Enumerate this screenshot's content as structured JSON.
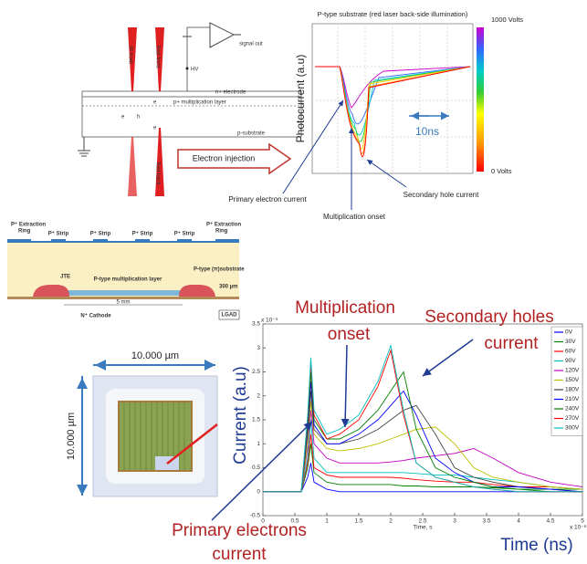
{
  "schematic": {
    "beams": [
      "IR front",
      "Red front",
      "Red back"
    ],
    "layers": [
      "n+ electrode",
      "p+ multiplication layer",
      "p-substrate"
    ],
    "signal": "signal out",
    "hv": "HV",
    "carriers": [
      "e",
      "h",
      "e",
      "e"
    ],
    "arrow": "Electron injection"
  },
  "pulse_plot": {
    "title": "P-type substrate (red laser back-side illumination)",
    "y_label": "Photocurrent (a.u)",
    "colorbar": [
      "1000 Volts",
      "0 Volts"
    ],
    "scale": "10ns",
    "annotations": [
      "Primary electron current",
      "Multiplication onset",
      "Secondary hole current"
    ]
  },
  "lgad": {
    "ring_label": [
      "P⁺ Extraction",
      "Ring"
    ],
    "strip": "P⁺ Strip",
    "multiplication": "P-type multiplication layer",
    "substrate": "P-type (π)substrate",
    "jte": "JTE",
    "thickness": "300 µm",
    "width": "5 mm",
    "cathode": "N⁺ Cathode",
    "tag": "LGAD"
  },
  "chip": {
    "width": "10.000 µm",
    "height": "10.000 µm"
  },
  "chart_data": {
    "type": "line",
    "annotations": [
      "Multiplication",
      "onset",
      "Secondary  holes",
      "current",
      "Primary electrons",
      "current"
    ],
    "y_label": "Current (a.u)",
    "x_label": "Time (ns)",
    "x_axis_label": "Time, s",
    "x_scale": "x 10⁻⁸",
    "y_scale": "x 10⁻⁹",
    "xlim": [
      0,
      5
    ],
    "ylim": [
      -0.5,
      3.5
    ],
    "xticks": [
      0,
      0.5,
      1,
      1.5,
      2,
      2.5,
      3,
      3.5,
      4,
      4.5,
      5
    ],
    "yticks": [
      -0.5,
      0,
      0.5,
      1,
      1.5,
      2,
      2.5,
      3,
      3.5
    ],
    "x": [
      0,
      0.6,
      0.7,
      0.75,
      0.8,
      1.0,
      1.2,
      1.5,
      1.8,
      2.0,
      2.2,
      2.4,
      2.7,
      3.0,
      3.3,
      3.6,
      4.0,
      4.5,
      5.0
    ],
    "series": [
      {
        "name": "0V",
        "color": "#0000ff",
        "values": [
          0,
          0,
          0.3,
          0.6,
          0.2,
          0.05,
          0,
          0,
          0,
          0,
          0,
          0,
          0,
          0,
          0,
          0,
          0,
          0,
          0
        ]
      },
      {
        "name": "30V",
        "color": "#008000",
        "values": [
          0,
          0,
          0.5,
          1.0,
          0.4,
          0.2,
          0.15,
          0.15,
          0.15,
          0.15,
          0.12,
          0.12,
          0.1,
          0.1,
          0.1,
          0.08,
          0.05,
          0.05,
          0.05
        ]
      },
      {
        "name": "60V",
        "color": "#ff0000",
        "values": [
          0,
          0,
          0.6,
          1.2,
          0.5,
          0.35,
          0.3,
          0.3,
          0.3,
          0.3,
          0.28,
          0.25,
          0.22,
          0.2,
          0.2,
          0.15,
          0.1,
          0.1,
          0.05
        ]
      },
      {
        "name": "90V",
        "color": "#00bfbf",
        "values": [
          0,
          0,
          0.7,
          1.5,
          0.7,
          0.4,
          0.4,
          0.4,
          0.4,
          0.4,
          0.4,
          0.38,
          0.35,
          0.35,
          0.3,
          0.25,
          0.2,
          0.1,
          0.05
        ]
      },
      {
        "name": "120V",
        "color": "#bf00bf",
        "values": [
          0,
          0,
          0.9,
          1.7,
          1.0,
          0.7,
          0.6,
          0.6,
          0.6,
          0.62,
          0.65,
          0.7,
          0.75,
          0.8,
          0.9,
          0.7,
          0.4,
          0.2,
          0.1
        ]
      },
      {
        "name": "150V",
        "color": "#bfbf00",
        "values": [
          0,
          0,
          1.0,
          1.9,
          1.2,
          0.9,
          0.85,
          0.9,
          1.0,
          1.1,
          1.2,
          1.3,
          1.35,
          1.0,
          0.5,
          0.3,
          0.2,
          0.1,
          0.05
        ]
      },
      {
        "name": "180V",
        "color": "#404040",
        "values": [
          0,
          0,
          1.2,
          2.1,
          1.3,
          1.0,
          1.0,
          1.1,
          1.3,
          1.5,
          1.7,
          1.8,
          1.2,
          0.5,
          0.3,
          0.2,
          0.1,
          0.05,
          0
        ]
      },
      {
        "name": "210V",
        "color": "#0000ff",
        "values": [
          0,
          0,
          1.3,
          2.3,
          1.4,
          1.0,
          1.0,
          1.2,
          1.5,
          1.8,
          2.1,
          1.6,
          0.7,
          0.4,
          0.2,
          0.1,
          0.1,
          0.05,
          0
        ]
      },
      {
        "name": "240V",
        "color": "#008000",
        "values": [
          0,
          0,
          1.4,
          2.5,
          1.5,
          1.1,
          1.1,
          1.3,
          1.7,
          2.1,
          2.5,
          1.3,
          0.5,
          0.3,
          0.2,
          0.1,
          0.05,
          0,
          0
        ]
      },
      {
        "name": "270V",
        "color": "#ff0000",
        "values": [
          0,
          0,
          1.5,
          2.7,
          1.6,
          1.1,
          1.2,
          1.5,
          2.2,
          2.95,
          1.6,
          0.6,
          0.3,
          0.2,
          0.1,
          0.05,
          0,
          0,
          0
        ]
      },
      {
        "name": "300V",
        "color": "#00bfbf",
        "values": [
          0,
          0,
          1.6,
          2.8,
          1.7,
          1.2,
          1.3,
          1.6,
          2.3,
          3.05,
          1.7,
          0.6,
          0.3,
          0.2,
          0.1,
          0.05,
          0,
          0,
          0
        ]
      }
    ]
  }
}
